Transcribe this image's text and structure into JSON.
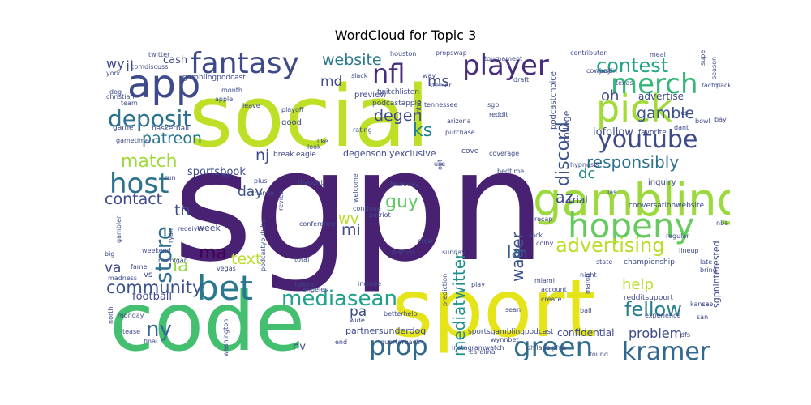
{
  "chart_data": {
    "type": "wordcloud",
    "title": "WordCloud for Topic 3",
    "background": "#ffffff",
    "words": [
      {
        "text": "sgpn",
        "weight": 100,
        "color": "#482173"
      },
      {
        "text": "social",
        "weight": 78,
        "color": "#bddf26"
      },
      {
        "text": "sport",
        "weight": 72,
        "color": "#e5e419"
      },
      {
        "text": "code",
        "weight": 70,
        "color": "#44bf70"
      },
      {
        "text": "gambling",
        "weight": 44,
        "color": "#9bd93c"
      },
      {
        "text": "app",
        "weight": 38,
        "color": "#3e4a89"
      },
      {
        "text": "pick",
        "weight": 35,
        "color": "#a2da37"
      },
      {
        "text": "hopeny",
        "weight": 35,
        "color": "#65cb5e"
      },
      {
        "text": "bet",
        "weight": 33,
        "color": "#2a788e"
      },
      {
        "text": "fantasy",
        "weight": 32,
        "color": "#3e4a89"
      },
      {
        "text": "player",
        "weight": 31,
        "color": "#472d7b"
      },
      {
        "text": "merch",
        "weight": 30,
        "color": "#35b779"
      },
      {
        "text": "host",
        "weight": 30,
        "color": "#2c728e"
      },
      {
        "text": "prop",
        "weight": 28,
        "color": "#31688e"
      },
      {
        "text": "kramer",
        "weight": 26,
        "color": "#31688e"
      },
      {
        "text": "green",
        "weight": 27,
        "color": "#2e6e8e"
      },
      {
        "text": "youtube",
        "weight": 27,
        "color": "#3e4a89"
      },
      {
        "text": "advertising",
        "weight": 24,
        "color": "#b8de29"
      },
      {
        "text": "store",
        "weight": 25,
        "color": "#2d708e"
      },
      {
        "text": "nfl",
        "weight": 26,
        "color": "#472d7b"
      },
      {
        "text": "deposit",
        "weight": 23,
        "color": "#2c728e"
      },
      {
        "text": "mediasean",
        "weight": 22,
        "color": "#1fa088"
      },
      {
        "text": "contest",
        "weight": 21,
        "color": "#20a486"
      },
      {
        "text": "discord",
        "weight": 18,
        "color": "#3b528b"
      },
      {
        "text": "fellow",
        "weight": 19,
        "color": "#277f8e"
      },
      {
        "text": "community",
        "weight": 18,
        "color": "#3b528b"
      },
      {
        "text": "mediatwitter",
        "weight": 17,
        "color": "#21908d"
      },
      {
        "text": "responsibly",
        "weight": 17,
        "color": "#2c728e"
      },
      {
        "text": "match",
        "weight": 18,
        "color": "#9fda3a"
      },
      {
        "text": "website",
        "weight": 16,
        "color": "#2a788e"
      },
      {
        "text": "ny",
        "weight": 22,
        "color": "#31688e"
      },
      {
        "text": "wager",
        "weight": 17,
        "color": "#3b528b"
      },
      {
        "text": "ks",
        "weight": 18,
        "color": "#26828e"
      },
      {
        "text": "contact",
        "weight": 17,
        "color": "#3e4a89"
      },
      {
        "text": "patreon",
        "weight": 16,
        "color": "#2a788e"
      },
      {
        "text": "guy",
        "weight": 16,
        "color": "#5ec962"
      },
      {
        "text": "degen",
        "weight": 16,
        "color": "#3e4a89"
      },
      {
        "text": "tn",
        "weight": 16,
        "color": "#3e4a89"
      },
      {
        "text": "ia",
        "weight": 16,
        "color": "#90d743"
      },
      {
        "text": "ma",
        "weight": 16,
        "color": "#440154"
      },
      {
        "text": "la",
        "weight": 14,
        "color": "#355f8d"
      },
      {
        "text": "nj",
        "weight": 16,
        "color": "#3e4a89"
      },
      {
        "text": "gamble",
        "weight": 15,
        "color": "#3b528b"
      },
      {
        "text": "help",
        "weight": 14,
        "color": "#b8de29"
      },
      {
        "text": "dc",
        "weight": 15,
        "color": "#23898e"
      },
      {
        "text": "az",
        "weight": 15,
        "color": "#3e4a89"
      },
      {
        "text": "text",
        "weight": 15,
        "color": "#b8de29"
      },
      {
        "text": "oh",
        "weight": 15,
        "color": "#3e4a89"
      },
      {
        "text": "mi",
        "weight": 15,
        "color": "#3e4a89"
      },
      {
        "text": "ms",
        "weight": 15,
        "color": "#3e4a89"
      },
      {
        "text": "md",
        "weight": 14,
        "color": "#3e4a89"
      },
      {
        "text": "il",
        "weight": 14,
        "color": "#3e4a89"
      },
      {
        "text": "wv",
        "weight": 14,
        "color": "#b8de29"
      },
      {
        "text": "pa",
        "weight": 14,
        "color": "#3e4a89"
      },
      {
        "text": "va",
        "weight": 14,
        "color": "#3e4a89"
      },
      {
        "text": "wy",
        "weight": 14,
        "color": "#3e4a89"
      },
      {
        "text": "day",
        "weight": 13,
        "color": "#3b528b"
      },
      {
        "text": "problem",
        "weight": 12,
        "color": "#3e4a89"
      },
      {
        "text": "sportsbook",
        "weight": 11,
        "color": "#3e4a89"
      },
      {
        "text": "cash",
        "weight": 11,
        "color": "#3e4a89"
      },
      {
        "text": "iofollow",
        "weight": 11,
        "color": "#3e4a89"
      },
      {
        "text": "advertise",
        "weight": 10,
        "color": "#3e4a89"
      },
      {
        "text": "football",
        "weight": 10,
        "color": "#3e4a89"
      },
      {
        "text": "trial",
        "weight": 10,
        "color": "#3e4a89"
      },
      {
        "text": "confidential",
        "weight": 10,
        "color": "#3e4a89"
      },
      {
        "text": "partnersunderdog",
        "weight": 9,
        "color": "#3e4a89"
      },
      {
        "text": "degensonlyexclusive",
        "weight": 9,
        "color": "#3e4a89"
      },
      {
        "text": "sgpninterested",
        "weight": 8,
        "color": "#3e4a89"
      },
      {
        "text": "college",
        "weight": 8,
        "color": "#3e4a89"
      },
      {
        "text": "podcastchoice",
        "weight": 8,
        "color": "#3e4a89"
      },
      {
        "text": "preview",
        "weight": 8,
        "color": "#3e4a89"
      },
      {
        "text": "gamblingpodcast",
        "weight": 7,
        "color": "#3e4a89"
      },
      {
        "text": "week",
        "weight": 8,
        "color": "#3e4a89"
      },
      {
        "text": "basketball",
        "weight": 7,
        "color": "#3e4a89"
      },
      {
        "text": "good",
        "weight": 7,
        "color": "#3e4a89"
      },
      {
        "text": "game",
        "weight": 7,
        "color": "#3e4a89"
      },
      {
        "text": "favorite",
        "weight": 7,
        "color": "#3e4a89"
      },
      {
        "text": "inquiry",
        "weight": 7,
        "color": "#3e4a89"
      },
      {
        "text": "championship",
        "weight": 6,
        "color": "#3e4a89"
      },
      {
        "text": "conversationwebsite",
        "weight": 6,
        "color": "#3e4a89"
      },
      {
        "text": "redditsupport",
        "weight": 6,
        "color": "#3e4a89"
      },
      {
        "text": "sportsgamblingpodcast",
        "weight": 6,
        "color": "#3e4a89"
      },
      {
        "text": "instagramwatch",
        "weight": 6,
        "color": "#3e4a89"
      },
      {
        "text": "quarterback",
        "weight": 6,
        "color": "#3e4a89"
      },
      {
        "text": "philadelphia",
        "weight": 6,
        "color": "#3e4a89"
      },
      {
        "text": "podcastyoutube",
        "weight": 5,
        "color": "#3e4a89"
      },
      {
        "text": "twitchlisten",
        "weight": 6,
        "color": "#3e4a89"
      },
      {
        "text": "podcastapple",
        "weight": 6,
        "color": "#3e4a89"
      },
      {
        "text": "thursday",
        "weight": 5,
        "color": "#3e4a89"
      },
      {
        "text": "prediction",
        "weight": 5,
        "color": "#3e4a89"
      },
      {
        "text": "hypnosis",
        "weight": 5,
        "color": "#3e4a89"
      },
      {
        "text": "betterhelp",
        "weight": 5,
        "color": "#3e4a89"
      },
      {
        "text": "experience",
        "weight": 5,
        "color": "#3e4a89"
      },
      {
        "text": "tournament",
        "weight": 5,
        "color": "#3e4a89"
      },
      {
        "text": "contributor",
        "weight": 5,
        "color": "#3e4a89"
      },
      {
        "text": "propswap",
        "weight": 5,
        "color": "#3e4a89"
      },
      {
        "text": "houston",
        "weight": 5,
        "color": "#3e4a89"
      },
      {
        "text": "steeler",
        "weight": 5,
        "color": "#3e4a89"
      },
      {
        "text": "arizona",
        "weight": 5,
        "color": "#3e4a89"
      },
      {
        "text": "purchase",
        "weight": 5,
        "color": "#3e4a89"
      },
      {
        "text": "coverage",
        "weight": 5,
        "color": "#3e4a89"
      },
      {
        "text": "eagle",
        "weight": 5,
        "color": "#3e4a89"
      },
      {
        "text": "break",
        "weight": 5,
        "color": "#3e4a89"
      },
      {
        "text": "cove",
        "weight": 5,
        "color": "#3e4a89"
      },
      {
        "text": "recap",
        "weight": 5,
        "color": "#3e4a89"
      },
      {
        "text": "regular",
        "weight": 5,
        "color": "#3e4a89"
      },
      {
        "text": "lineup",
        "weight": 5,
        "color": "#3e4a89"
      },
      {
        "text": "kansas",
        "weight": 5,
        "color": "#3e4a89"
      },
      {
        "text": "carolina",
        "weight": 5,
        "color": "#3e4a89"
      },
      {
        "text": "wynnbet",
        "weight": 5,
        "color": "#3e4a89"
      },
      {
        "text": "discuss",
        "weight": 5,
        "color": "#3e4a89"
      },
      {
        "text": "sunday",
        "weight": 5,
        "color": "#3e4a89"
      },
      {
        "text": "crew",
        "weight": 5,
        "color": "#3e4a89"
      },
      {
        "text": "continue",
        "weight": 5,
        "color": "#3e4a89"
      },
      {
        "text": "conference",
        "weight": 5,
        "color": "#3e4a89"
      },
      {
        "text": "review",
        "weight": 5,
        "color": "#3e4a89"
      },
      {
        "text": "angeles",
        "weight": 5,
        "color": "#3e4a89"
      },
      {
        "text": "total",
        "weight": 5,
        "color": "#3e4a89"
      },
      {
        "text": "future",
        "weight": 5,
        "color": "#3e4a89"
      },
      {
        "text": "include",
        "weight": 5,
        "color": "#3e4a89"
      },
      {
        "text": "play",
        "weight": 5,
        "color": "#3e4a89"
      },
      {
        "text": "account",
        "weight": 5,
        "color": "#3e4a89"
      },
      {
        "text": "create",
        "weight": 5,
        "color": "#3e4a89"
      },
      {
        "text": "ball",
        "weight": 5,
        "color": "#3e4a89"
      },
      {
        "text": "state",
        "weight": 5,
        "color": "#3e4a89"
      },
      {
        "text": "night",
        "weight": 5,
        "color": "#3e4a89"
      },
      {
        "text": "miami",
        "weight": 5,
        "color": "#3e4a89"
      },
      {
        "text": "march",
        "weight": 5,
        "color": "#3e4a89"
      },
      {
        "text": "lock",
        "weight": 5,
        "color": "#3e4a89"
      },
      {
        "text": "end",
        "weight": 5,
        "color": "#3e4a89"
      },
      {
        "text": "nv",
        "weight": 6,
        "color": "#3e4a89"
      },
      {
        "text": "vs",
        "weight": 6,
        "color": "#3e4a89"
      },
      {
        "text": "ryan",
        "weight": 5,
        "color": "#3e4a89"
      },
      {
        "text": "gambler",
        "weight": 5,
        "color": "#3e4a89"
      },
      {
        "text": "fame",
        "weight": 5,
        "color": "#3e4a89"
      },
      {
        "text": "big",
        "weight": 5,
        "color": "#3e4a89"
      },
      {
        "text": "weekend",
        "weight": 5,
        "color": "#3e4a89"
      },
      {
        "text": "michigan",
        "weight": 5,
        "color": "#3e4a89"
      },
      {
        "text": "vegas",
        "weight": 5,
        "color": "#3e4a89"
      },
      {
        "text": "madness",
        "weight": 5,
        "color": "#3e4a89"
      },
      {
        "text": "monday",
        "weight": 4,
        "color": "#3e4a89"
      },
      {
        "text": "north",
        "weight": 4,
        "color": "#3e4a89"
      },
      {
        "text": "tease",
        "weight": 4,
        "color": "#3e4a89"
      },
      {
        "text": "final",
        "weight": 4,
        "color": "#3e4a89"
      },
      {
        "text": "washington",
        "weight": 4,
        "color": "#3e4a89"
      },
      {
        "text": "hit",
        "weight": 5,
        "color": "#3e4a89"
      },
      {
        "text": "plus",
        "weight": 5,
        "color": "#3e4a89"
      },
      {
        "text": "chance",
        "weight": 5,
        "color": "#3e4a89"
      },
      {
        "text": "thought",
        "weight": 5,
        "color": "#3e4a89"
      },
      {
        "text": "welcome",
        "weight": 4,
        "color": "#3e4a89"
      },
      {
        "text": "patriot",
        "weight": 4,
        "color": "#3e4a89"
      },
      {
        "text": "wide",
        "weight": 4,
        "color": "#3e4a89"
      },
      {
        "text": "receiver",
        "weight": 4,
        "color": "#3e4a89"
      },
      {
        "text": "run",
        "weight": 4,
        "color": "#3e4a89"
      },
      {
        "text": "gametime",
        "weight": 4,
        "color": "#3e4a89"
      },
      {
        "text": "christian",
        "weight": 4,
        "color": "#3e4a89"
      },
      {
        "text": "team",
        "weight": 4,
        "color": "#3e4a89"
      },
      {
        "text": "dog",
        "weight": 4,
        "color": "#3e4a89"
      },
      {
        "text": "york",
        "weight": 4,
        "color": "#3e4a89"
      },
      {
        "text": "comdiscuss",
        "weight": 4,
        "color": "#3e4a89"
      },
      {
        "text": "twitter",
        "weight": 4,
        "color": "#3e4a89"
      },
      {
        "text": "month",
        "weight": 4,
        "color": "#3e4a89"
      },
      {
        "text": "apple",
        "weight": 5,
        "color": "#3e4a89"
      },
      {
        "text": "leave",
        "weight": 5,
        "color": "#3e4a89"
      },
      {
        "text": "playoff",
        "weight": 5,
        "color": "#3e4a89"
      },
      {
        "text": "rating",
        "weight": 5,
        "color": "#3e4a89"
      },
      {
        "text": "slack",
        "weight": 5,
        "color": "#3e4a89"
      },
      {
        "text": "intro",
        "weight": 4,
        "color": "#3e4a89"
      },
      {
        "text": "sgp",
        "weight": 5,
        "color": "#3e4a89"
      },
      {
        "text": "reddit",
        "weight": 5,
        "color": "#3e4a89"
      },
      {
        "text": "tennessee",
        "weight": 4,
        "color": "#3e4a89"
      },
      {
        "text": "like",
        "weight": 5,
        "color": "#3e4a89"
      },
      {
        "text": "look",
        "weight": 5,
        "color": "#3e4a89"
      },
      {
        "text": "use",
        "weight": 5,
        "color": "#3e4a89"
      },
      {
        "text": "opt",
        "weight": 5,
        "color": "#3e4a89"
      },
      {
        "text": "way",
        "weight": 4,
        "color": "#3e4a89"
      },
      {
        "text": "draft",
        "weight": 5,
        "color": "#3e4a89"
      },
      {
        "text": "cowboy",
        "weight": 4,
        "color": "#3e4a89"
      },
      {
        "text": "justin",
        "weight": 4,
        "color": "#3e4a89"
      },
      {
        "text": "texas",
        "weight": 4,
        "color": "#3e4a89"
      },
      {
        "text": "packer",
        "weight": 4,
        "color": "#3e4a89"
      },
      {
        "text": "factor",
        "weight": 4,
        "color": "#3e4a89"
      },
      {
        "text": "meal",
        "weight": 4,
        "color": "#3e4a89"
      },
      {
        "text": "super",
        "weight": 4,
        "color": "#3e4a89"
      },
      {
        "text": "season",
        "weight": 4,
        "color": "#3e4a89"
      },
      {
        "text": "los",
        "weight": 4,
        "color": "#3e4a89"
      },
      {
        "text": "bowl",
        "weight": 4,
        "color": "#3e4a89"
      },
      {
        "text": "bay",
        "weight": 4,
        "color": "#3e4a89"
      },
      {
        "text": "dant",
        "weight": 4,
        "color": "#3e4a89"
      },
      {
        "text": "bedtime",
        "weight": 4,
        "color": "#3e4a89"
      },
      {
        "text": "las",
        "weight": 4,
        "color": "#3e4a89"
      },
      {
        "text": "colby",
        "weight": 4,
        "color": "#3e4a89"
      },
      {
        "text": "nba",
        "weight": 4,
        "color": "#3e4a89"
      },
      {
        "text": "late",
        "weight": 4,
        "color": "#3e4a89"
      },
      {
        "text": "bring",
        "weight": 4,
        "color": "#3e4a89"
      },
      {
        "text": "cap",
        "weight": 4,
        "color": "#3e4a89"
      },
      {
        "text": "san",
        "weight": 4,
        "color": "#3e4a89"
      },
      {
        "text": "dfs",
        "weight": 4,
        "color": "#3e4a89"
      },
      {
        "text": "found",
        "weight": 4,
        "color": "#3e4a89"
      },
      {
        "text": "sean",
        "weight": 5,
        "color": "#3e4a89"
      }
    ]
  }
}
